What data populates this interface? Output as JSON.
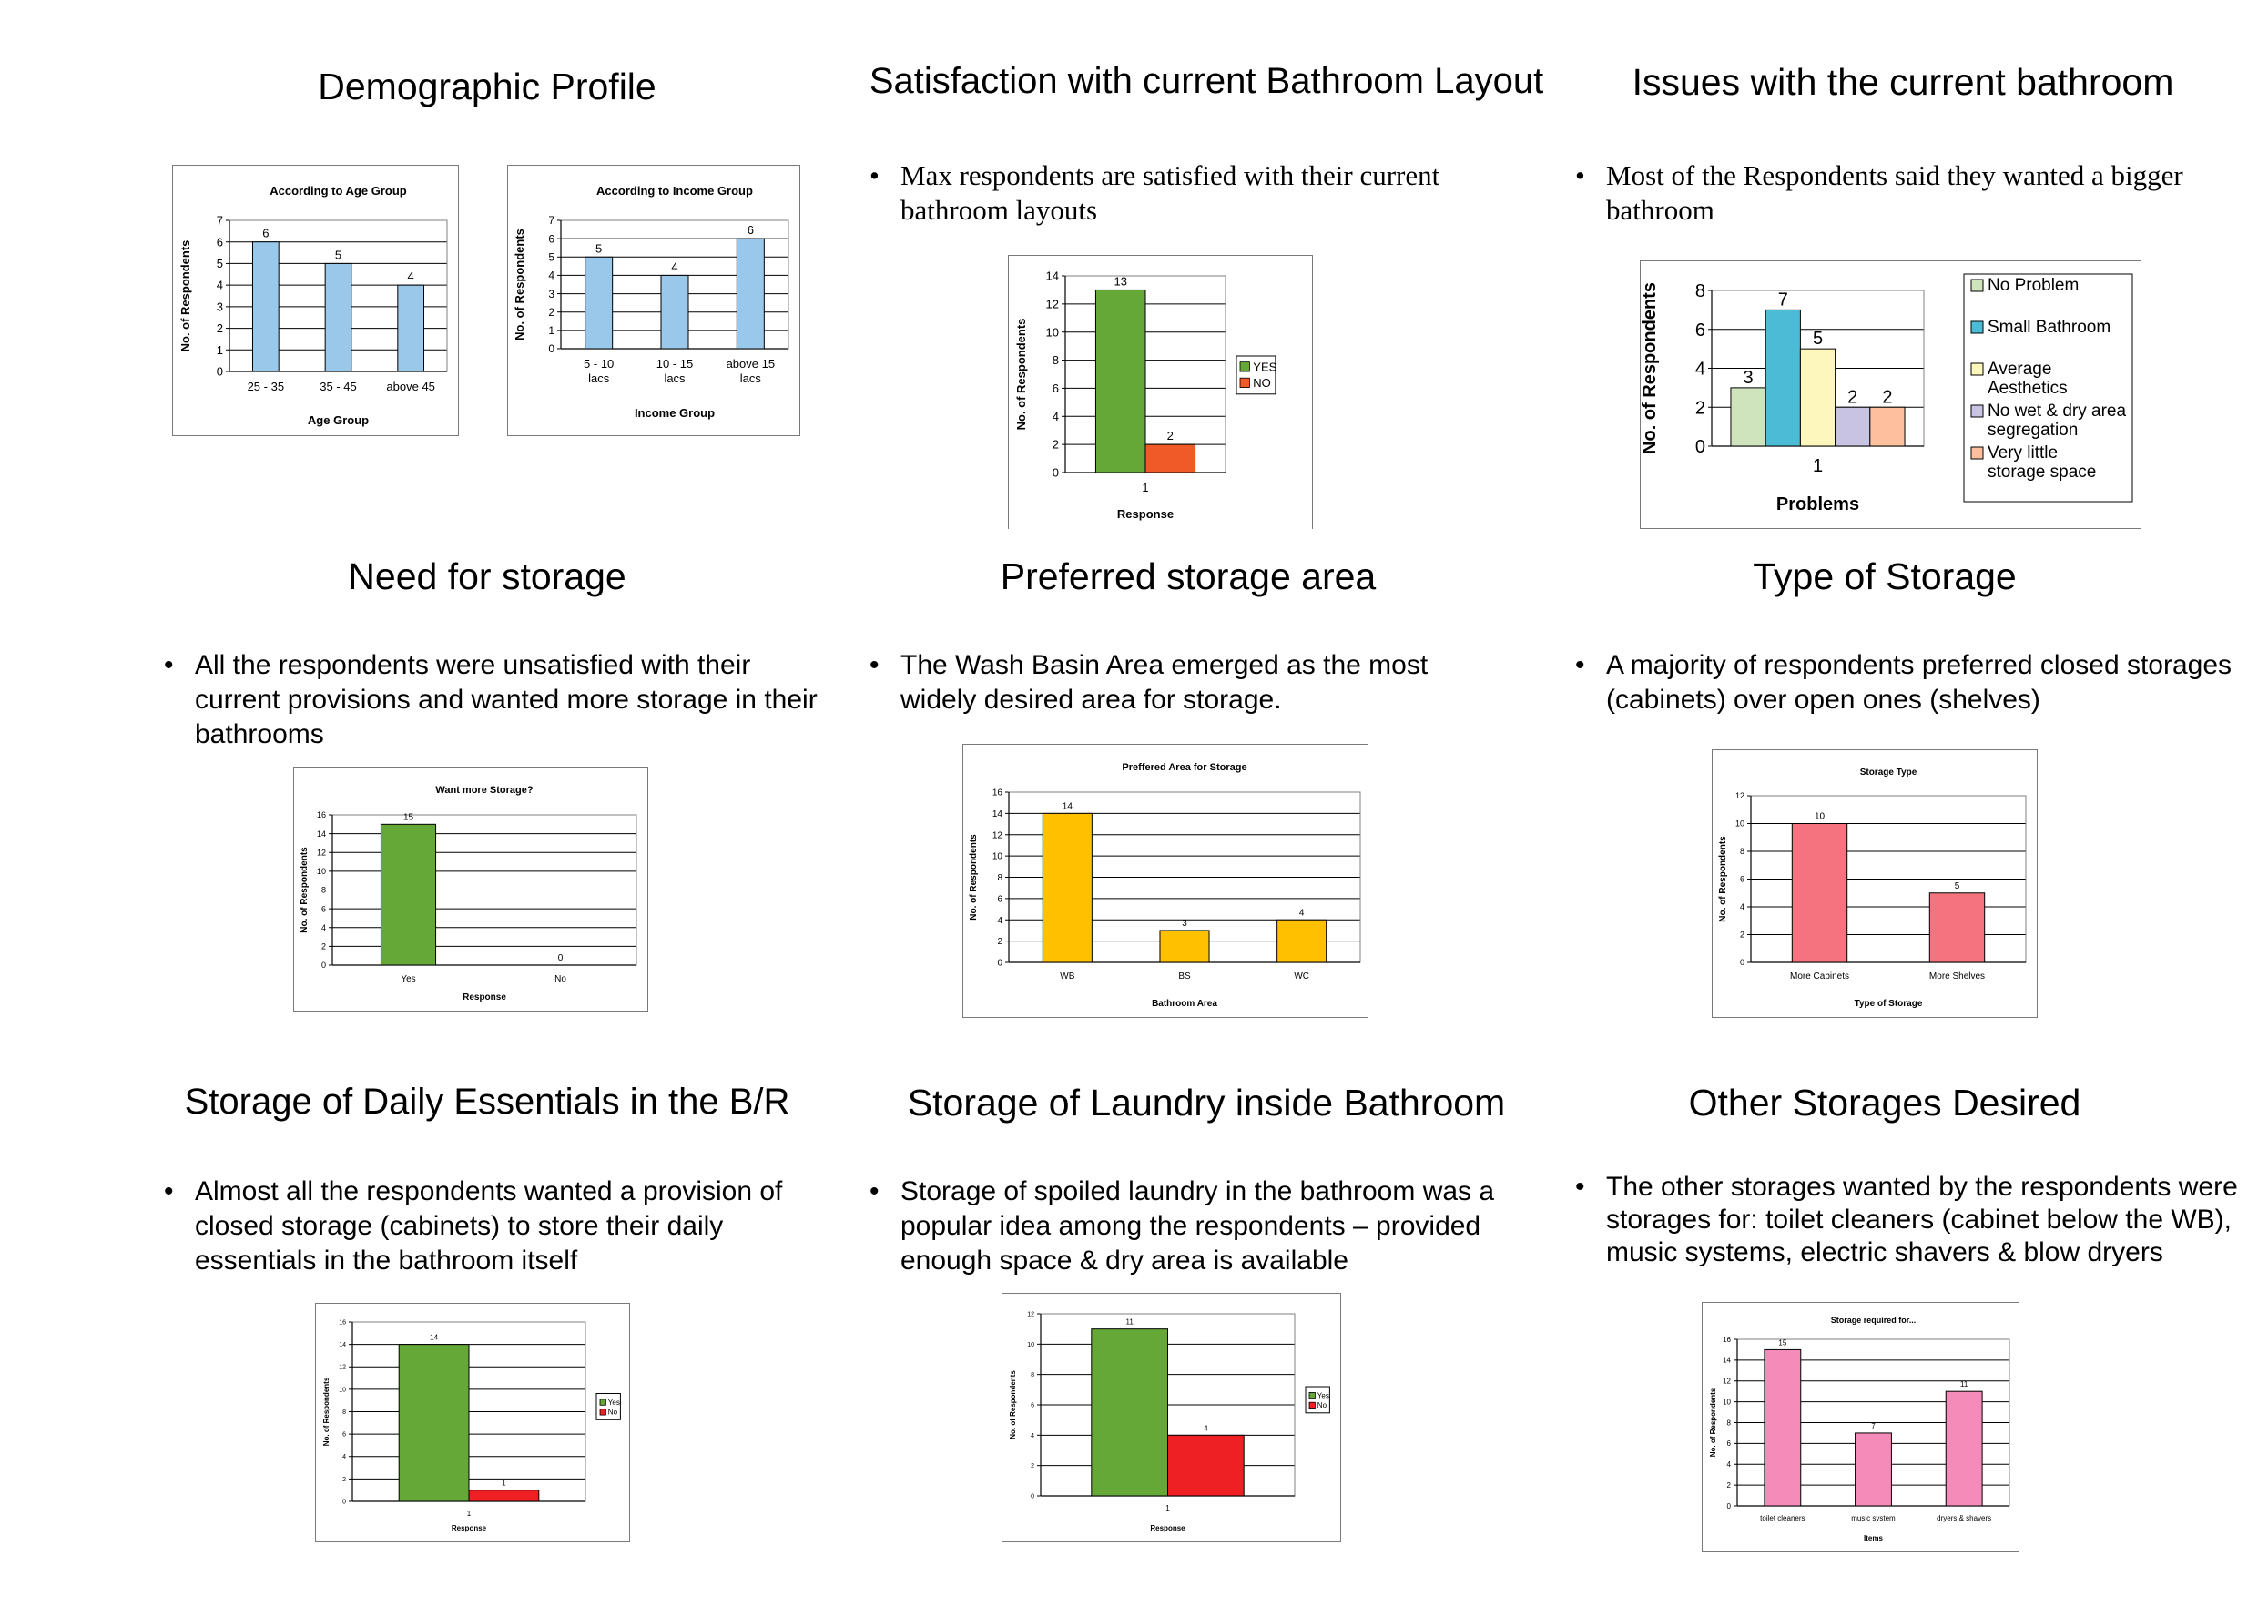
{
  "sections": [
    {
      "title": "Demographic Profile",
      "bullet": ""
    },
    {
      "title": "Satisfaction with current Bathroom Layout",
      "bullet": "Max respondents are satisfied with their current bathroom layouts"
    },
    {
      "title": "Issues with the current bathroom",
      "bullet": "Most of the Respondents said they wanted a bigger bathroom"
    },
    {
      "title": "Need for storage",
      "bullet": "All the respondents were unsatisfied with their current provisions and wanted more storage in their bathrooms"
    },
    {
      "title": "Preferred storage area",
      "bullet": "The Wash Basin Area emerged as the most widely desired area for storage."
    },
    {
      "title": "Type of Storage",
      "bullet": "A majority of respondents preferred closed storages (cabinets) over open ones (shelves)"
    },
    {
      "title": "Storage of Daily Essentials in the B/R",
      "bullet": "Almost all the respondents wanted  a provision of closed storage (cabinets) to store their daily essentials in the bathroom itself"
    },
    {
      "title": "Storage of Laundry inside Bathroom",
      "bullet": "Storage of spoiled laundry in the bathroom was a popular idea among the respondents – provided enough space & dry area is available"
    },
    {
      "title": "Other Storages Desired",
      "bullet": "The other storages wanted by the respondents were storages for: toilet cleaners (cabinet below the WB), music systems, electric shavers & blow dryers"
    }
  ],
  "chart_data": [
    {
      "type": "bar",
      "title": "According to Age Group",
      "xlabel": "Age Group",
      "ylabel": "No. of Respondents",
      "categories": [
        "25 - 35",
        "35 - 45",
        "above 45"
      ],
      "values": [
        6,
        5,
        4
      ],
      "ylim": [
        0,
        7
      ],
      "yticks": [
        0,
        1,
        2,
        3,
        4,
        5,
        6,
        7
      ],
      "colors": [
        "#99c8eb"
      ],
      "grid": true
    },
    {
      "type": "bar",
      "title": "According to Income Group",
      "xlabel": "Income Group",
      "ylabel": "No. of Respondents",
      "categories": [
        "5 - 10 lacs",
        "10 - 15 lacs",
        "above 15 lacs"
      ],
      "values": [
        5,
        4,
        6
      ],
      "ylim": [
        0,
        7
      ],
      "yticks": [
        0,
        1,
        2,
        3,
        4,
        5,
        6,
        7
      ],
      "colors": [
        "#99c8eb"
      ],
      "grid": true
    },
    {
      "type": "bar",
      "title": "",
      "xlabel": "Response",
      "ylabel": "No. of Respondents",
      "categories": [
        "1"
      ],
      "series": [
        {
          "name": "YES",
          "values": [
            13
          ]
        },
        {
          "name": "NO",
          "values": [
            2
          ]
        }
      ],
      "ylim": [
        0,
        14
      ],
      "yticks": [
        0,
        2,
        4,
        6,
        8,
        10,
        12,
        14
      ],
      "colors": [
        "#66a838",
        "#f05a28"
      ],
      "grid": true,
      "legend": "right"
    },
    {
      "type": "bar",
      "title": "",
      "xlabel": "Problems",
      "ylabel": "No. of Respondents",
      "categories": [
        "1"
      ],
      "series": [
        {
          "name": "No Problem",
          "values": [
            3
          ]
        },
        {
          "name": "Small Bathroom",
          "values": [
            7
          ]
        },
        {
          "name": "Average Aesthetics",
          "values": [
            5
          ]
        },
        {
          "name": "No wet & dry area segregation",
          "values": [
            2
          ]
        },
        {
          "name": "Very little storage space",
          "values": [
            2
          ]
        }
      ],
      "ylim": [
        0,
        8
      ],
      "yticks": [
        0,
        2,
        4,
        6,
        8
      ],
      "colors": [
        "#cfe3bc",
        "#4cbcd6",
        "#fdf6bd",
        "#c9c3e3",
        "#fdbf9e"
      ],
      "grid": true,
      "legend": "right"
    },
    {
      "type": "bar",
      "title": "Want more Storage?",
      "xlabel": "Response",
      "ylabel": "No. of Respondents",
      "categories": [
        "Yes",
        "No"
      ],
      "values": [
        15,
        0
      ],
      "ylim": [
        0,
        16
      ],
      "yticks": [
        0,
        2,
        4,
        6,
        8,
        10,
        12,
        14,
        16
      ],
      "colors": [
        "#66a838"
      ],
      "grid": true
    },
    {
      "type": "bar",
      "title": "Preffered Area for Storage",
      "xlabel": "Bathroom Area",
      "ylabel": "No. of Respondents",
      "categories": [
        "WB",
        "BS",
        "WC"
      ],
      "values": [
        14,
        3,
        4
      ],
      "ylim": [
        0,
        16
      ],
      "yticks": [
        0,
        2,
        4,
        6,
        8,
        10,
        12,
        14,
        16
      ],
      "colors": [
        "#ffc000"
      ],
      "grid": true
    },
    {
      "type": "bar",
      "title": "Storage Type",
      "xlabel": "Type of Storage",
      "ylabel": "No. of Respondents",
      "categories": [
        "More Cabinets",
        "More Shelves"
      ],
      "values": [
        10,
        5
      ],
      "ylim": [
        0,
        12
      ],
      "yticks": [
        0,
        2,
        4,
        6,
        8,
        10,
        12
      ],
      "colors": [
        "#f4737f"
      ],
      "grid": true
    },
    {
      "type": "bar",
      "title": "",
      "xlabel": "Response",
      "ylabel": "No. of Respondents",
      "categories": [
        "1"
      ],
      "series": [
        {
          "name": "Yes",
          "values": [
            14
          ]
        },
        {
          "name": "No",
          "values": [
            1
          ]
        }
      ],
      "ylim": [
        0,
        16
      ],
      "yticks": [
        0,
        2,
        4,
        6,
        8,
        10,
        12,
        14,
        16
      ],
      "colors": [
        "#66a838",
        "#ee2024"
      ],
      "grid": true,
      "legend": "right"
    },
    {
      "type": "bar",
      "title": "",
      "xlabel": "Response",
      "ylabel": "No. of Respondents",
      "categories": [
        "1"
      ],
      "series": [
        {
          "name": "Yes",
          "values": [
            11
          ]
        },
        {
          "name": "No",
          "values": [
            4
          ]
        }
      ],
      "ylim": [
        0,
        12
      ],
      "yticks": [
        0,
        2,
        4,
        6,
        8,
        10,
        12
      ],
      "colors": [
        "#66a838",
        "#ee2024"
      ],
      "grid": true,
      "legend": "right"
    },
    {
      "type": "bar",
      "title": "Storage required for...",
      "xlabel": "Items",
      "ylabel": "No. of Respondents",
      "categories": [
        "toilet cleaners",
        "music system",
        "dryers & shavers"
      ],
      "values": [
        15,
        7,
        11
      ],
      "ylim": [
        0,
        16
      ],
      "yticks": [
        0,
        2,
        4,
        6,
        8,
        10,
        12,
        14,
        16
      ],
      "colors": [
        "#f48bb9"
      ],
      "grid": true
    }
  ]
}
